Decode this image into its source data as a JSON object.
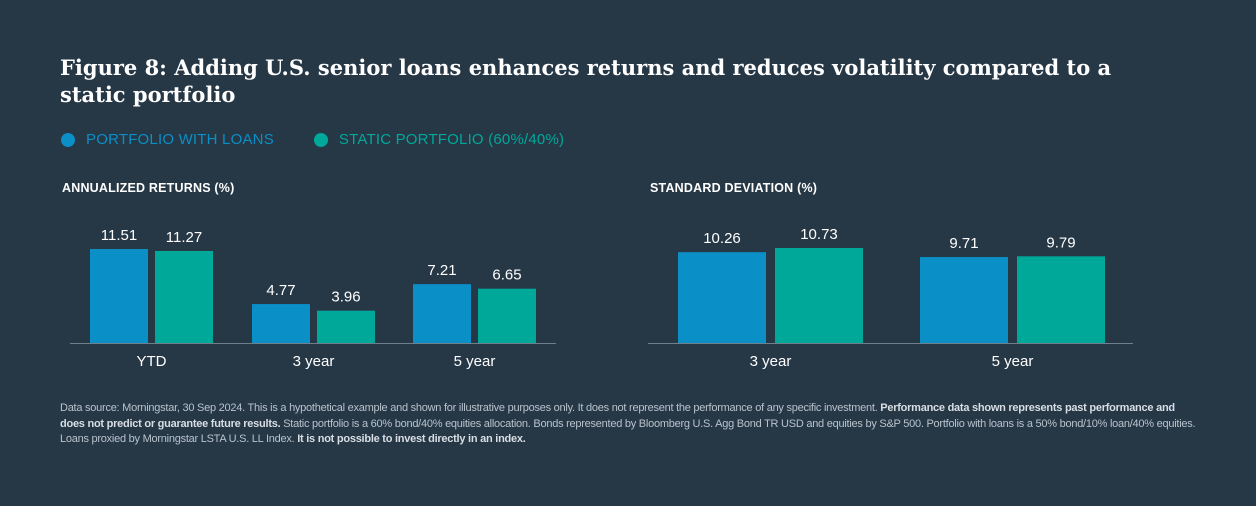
{
  "title": "Figure 8: Adding U.S. senior loans enhances returns and reduces volatility compared to a static portfolio",
  "colors": {
    "portfolio_with_loans": "#0a8fc6",
    "static_portfolio": "#00a89a",
    "background": "#263746",
    "axis": "#6f7f8c"
  },
  "legend": [
    {
      "label": "PORTFOLIO WITH LOANS",
      "color": "#0a8fc6"
    },
    {
      "label": "STATIC PORTFOLIO (60%/40%)",
      "color": "#00a89a"
    }
  ],
  "chart_data": [
    {
      "type": "bar",
      "title": "ANNUALIZED RETURNS (%)",
      "categories": [
        "YTD",
        "3 year",
        "5 year"
      ],
      "series": [
        {
          "name": "PORTFOLIO WITH LOANS",
          "values": [
            11.51,
            4.77,
            7.21
          ],
          "labels": [
            "11.51",
            "4.77",
            "7.21"
          ]
        },
        {
          "name": "STATIC PORTFOLIO (60%/40%)",
          "values": [
            11.27,
            3.96,
            6.65
          ],
          "labels": [
            "11.27",
            "3.96",
            "6.65"
          ]
        }
      ],
      "ylim": [
        0,
        11.51
      ],
      "grid": false,
      "legend": "top-left"
    },
    {
      "type": "bar",
      "title": "STANDARD DEVIATION (%)",
      "categories": [
        "3 year",
        "5 year"
      ],
      "series": [
        {
          "name": "PORTFOLIO WITH LOANS",
          "values": [
            10.26,
            9.71
          ],
          "labels": [
            "10.26",
            "9.71"
          ]
        },
        {
          "name": "STATIC PORTFOLIO (60%/40%)",
          "values": [
            10.73,
            9.79
          ],
          "labels": [
            "10.73",
            "9.79"
          ]
        }
      ],
      "ylim": [
        0,
        10.73
      ],
      "grid": false,
      "legend": "top-left"
    }
  ],
  "source": {
    "part1": "Data source: Morningstar, 30 Sep 2024. This is a hypothetical example and shown for illustrative purposes only. It does not represent the performance of any specific investment. ",
    "bold1": "Performance data shown represents past performance and does not predict or guarantee future results.",
    "part2": " Static portfolio is a 60% bond/40% equities allocation. Bonds represented by Bloomberg U.S. Agg Bond TR USD and equities by S&P 500. Portfolio with loans is a 50% bond/10% loan/40% equities. Loans proxied by Morningstar LSTA U.S. LL Index. ",
    "bold2": "It is not possible to invest directly in an index."
  }
}
